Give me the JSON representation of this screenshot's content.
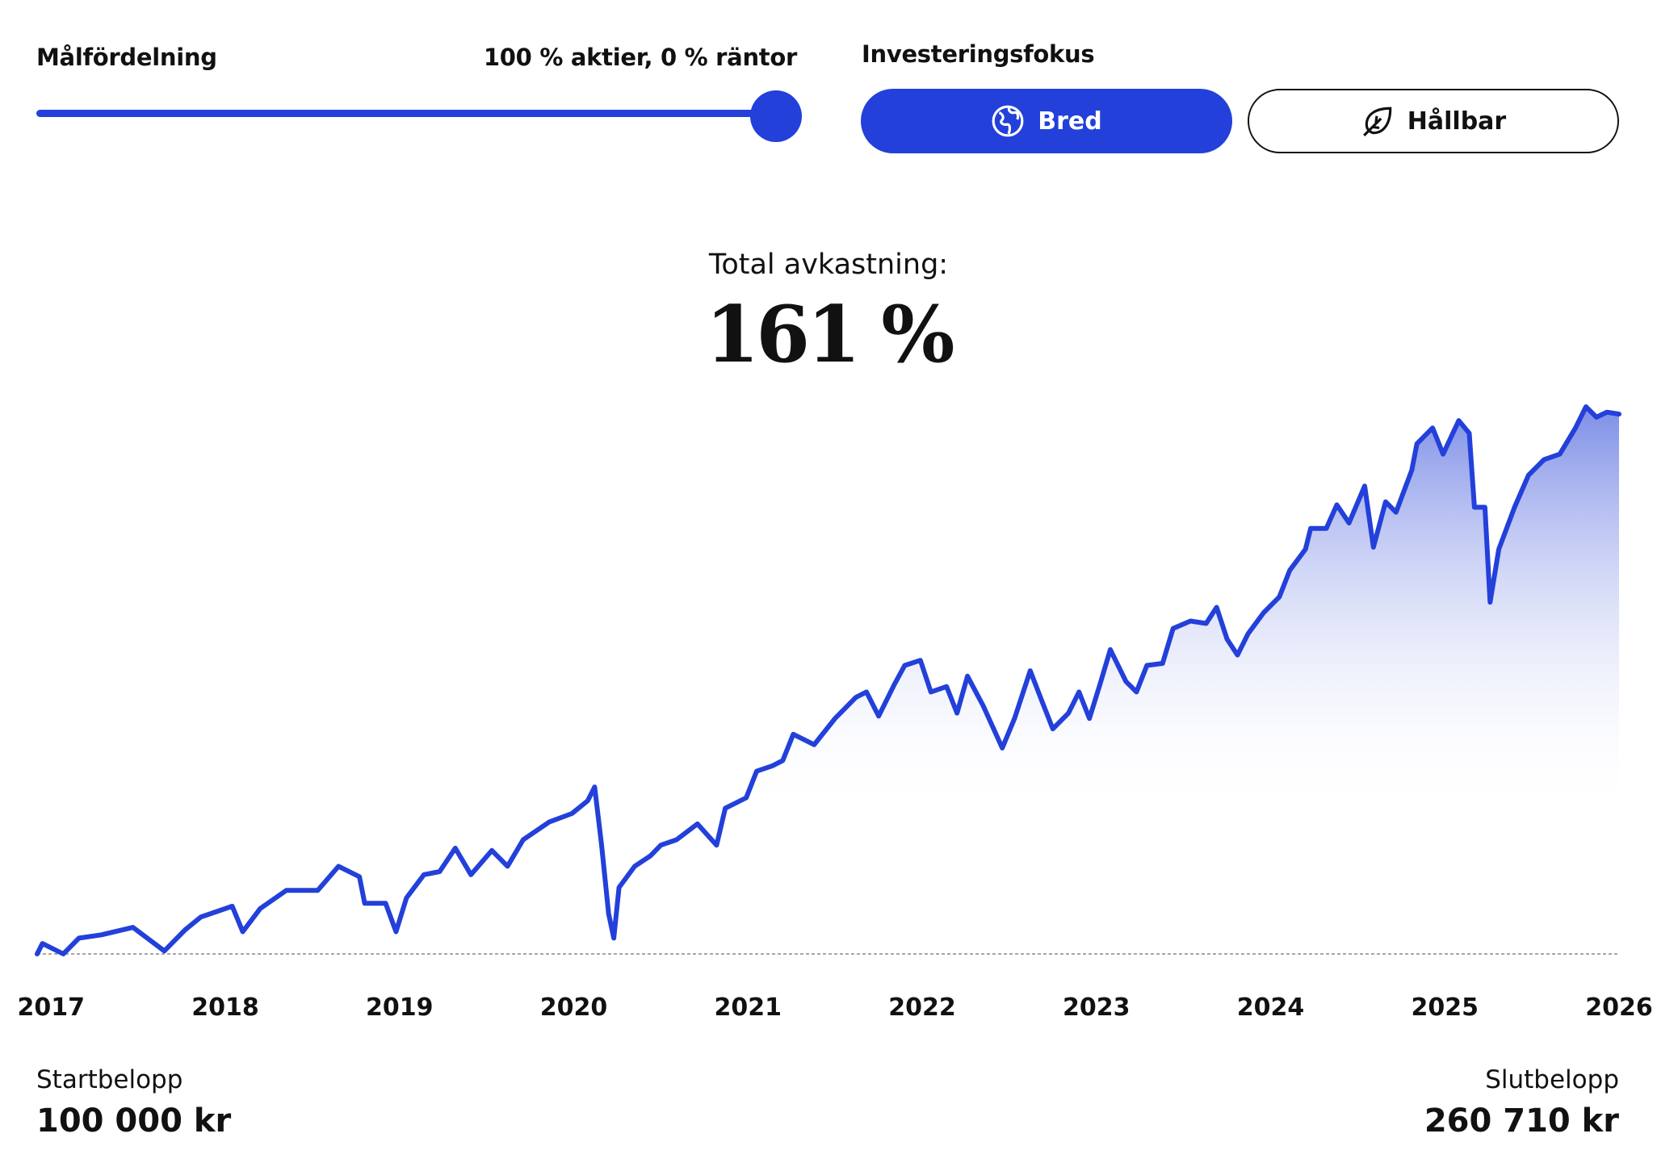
{
  "allocation": {
    "label": "Målfördelning",
    "value_text": "100 % aktier, 0 % räntor",
    "equity_share_percent": 100
  },
  "focus": {
    "label": "Investeringsfokus",
    "options": [
      {
        "label": "Bred",
        "icon": "globe-icon",
        "selected": true
      },
      {
        "label": "Hållbar",
        "icon": "leaf-icon",
        "selected": false
      }
    ]
  },
  "summary": {
    "total_return_label": "Total avkastning:",
    "total_return_value": "161 %"
  },
  "footer": {
    "start_label": "Startbelopp",
    "start_value": "100 000 kr",
    "end_label": "Slutbelopp",
    "end_value": "260 710 kr"
  },
  "colors": {
    "accent": "#2340da",
    "fill_top": "#7b8ce6",
    "baseline": "#888888"
  },
  "chart_data": {
    "type": "area",
    "x_tick_labels": [
      "2017",
      "2018",
      "2019",
      "2020",
      "2021",
      "2022",
      "2023",
      "2024",
      "2025",
      "2026"
    ],
    "xlim": [
      2016.92,
      2026.0
    ],
    "baseline_value": 100000,
    "grid": false,
    "series": [
      {
        "x": [
          2016.92,
          2016.95,
          2017.07,
          2017.16,
          2017.29,
          2017.47,
          2017.65,
          2017.77,
          2017.86,
          2018.04,
          2018.1,
          2018.2,
          2018.35,
          2018.53,
          2018.65,
          2018.77,
          2018.8,
          2018.92,
          2018.98,
          2019.04,
          2019.14,
          2019.23,
          2019.32,
          2019.41,
          2019.53,
          2019.62,
          2019.71,
          2019.86,
          2019.99,
          2020.08,
          2020.12,
          2020.16,
          2020.2,
          2020.23,
          2020.26,
          2020.35,
          2020.44,
          2020.5,
          2020.59,
          2020.71,
          2020.82,
          2020.87,
          2020.99,
          2021.05,
          2021.14,
          2021.2,
          2021.26,
          2021.38,
          2021.5,
          2021.62,
          2021.68,
          2021.75,
          2021.84,
          2021.9,
          2021.99,
          2022.05,
          2022.14,
          2022.2,
          2022.26,
          2022.35,
          2022.41,
          2022.46,
          2022.53,
          2022.62,
          2022.69,
          2022.75,
          2022.84,
          2022.9,
          2022.96,
          2023.02,
          2023.08,
          2023.17,
          2023.23,
          2023.29,
          2023.38,
          2023.44,
          2023.54,
          2023.63,
          2023.69,
          2023.75,
          2023.81,
          2023.87,
          2023.96,
          2024.05,
          2024.11,
          2024.2,
          2024.23,
          2024.32,
          2024.38,
          2024.45,
          2024.54,
          2024.59,
          2024.66,
          2024.72,
          2024.81,
          2024.84,
          2024.93,
          2024.99,
          2025.08,
          2025.14,
          2025.17,
          2025.23,
          2025.26,
          2025.31,
          2025.4,
          2025.48,
          2025.57,
          2025.66,
          2025.75,
          2025.81,
          2025.87,
          2025.93,
          2026.0
        ],
        "values": [
          100000,
          103100,
          100000,
          104700,
          105700,
          107900,
          100900,
          107200,
          111000,
          114200,
          106600,
          113500,
          118900,
          118900,
          126100,
          123000,
          115100,
          115100,
          106600,
          116700,
          123600,
          124500,
          131500,
          123600,
          130800,
          126100,
          134000,
          139300,
          141800,
          145600,
          149700,
          132400,
          112000,
          104700,
          119800,
          126100,
          129200,
          132400,
          134000,
          138700,
          132400,
          143400,
          146500,
          154400,
          156000,
          157600,
          165400,
          162300,
          170100,
          176400,
          178000,
          170800,
          180200,
          185900,
          187400,
          178000,
          179600,
          171700,
          182700,
          173900,
          167000,
          161300,
          170100,
          184300,
          174900,
          167000,
          171700,
          178000,
          170100,
          180200,
          190600,
          181100,
          178000,
          185900,
          186500,
          196900,
          199100,
          198400,
          203200,
          193700,
          189000,
          195300,
          201600,
          206300,
          214200,
          220500,
          226700,
          226700,
          233700,
          228300,
          239300,
          221100,
          234600,
          231500,
          244000,
          251900,
          256600,
          248800,
          258800,
          255000,
          233000,
          233000,
          204700,
          220500,
          233000,
          242500,
          247200,
          248800,
          256600,
          262900,
          259800,
          261300,
          260710
        ]
      }
    ]
  }
}
